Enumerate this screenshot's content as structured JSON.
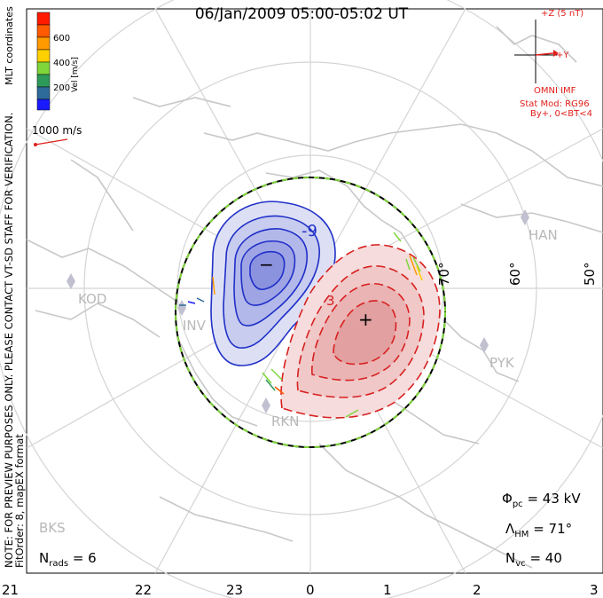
{
  "title": "06/Jan/2009 05:00-05:02 UT",
  "side_note_line1": "NOTE: FOR PREVIEW PURPOSES ONLY. PLEASE CONTACT VT-SD STAFF FOR VERIFICATION.",
  "side_note_line2": "FitOrder: 8, mapEX format",
  "coord_label": "MLT coordinates",
  "velocity_legend": {
    "title": "Vel [m/s]",
    "ticks": [
      "600",
      "400",
      "200"
    ],
    "colors": [
      "#ff1a00",
      "#ff5a00",
      "#ff9a00",
      "#ffd000",
      "#7fd63a",
      "#2e9a5a",
      "#2e6a9a",
      "#1a1aff"
    ]
  },
  "vector_scale_label": "1000 m/s",
  "imf": {
    "z_label": "+Z (5 nT)",
    "y_label": "+Y",
    "source": "OMNI IMF",
    "stat_model": "Stat Mod: RG96",
    "condition": "By+, 0<BT<4"
  },
  "stats": {
    "phi_pc_symbol": "Φ",
    "phi_pc_sub": "pc",
    "phi_pc_value": "= 43 kV",
    "lambda_hm_symbol": "Λ",
    "lambda_hm_sub": "HM",
    "lambda_hm_value": "= 71°",
    "n_vc_symbol": "N",
    "n_vc_sub": "vc",
    "n_vc_value": "= 40",
    "n_rads_symbol": "N",
    "n_rads_sub": "rads",
    "n_rads_value": "= 6"
  },
  "latitude_labels": [
    "70°",
    "60°",
    "50°"
  ],
  "mlt_ticks": [
    "21",
    "22",
    "23",
    "0",
    "1",
    "2",
    "3"
  ],
  "contour_labels": [
    "-9",
    "3"
  ],
  "cell_markers": [
    "−",
    "+"
  ],
  "stations": [
    "HAN",
    "KOD",
    "PYK",
    "BKS",
    "INV",
    "RKN"
  ],
  "colors": {
    "negative_cell": "#2030c8",
    "positive_cell": "#d82020",
    "heppner_maynard_boundary": "#000000",
    "coastline": "#c8c8c8",
    "grid": "#d4d4d4"
  }
}
